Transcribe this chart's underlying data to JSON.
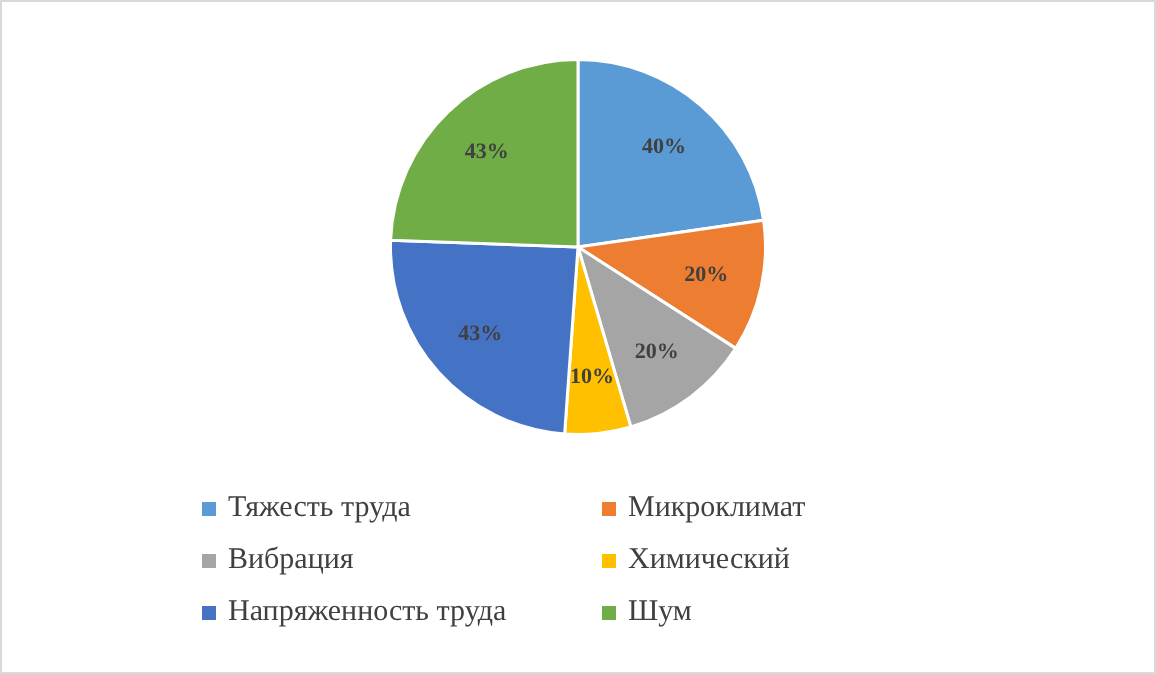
{
  "chart_data": {
    "type": "pie",
    "categories": [
      "Тяжесть труда",
      "Микроклимат",
      "Вибрация",
      "Химический",
      "Напряженность труда",
      "Шум"
    ],
    "values": [
      40,
      20,
      20,
      10,
      43,
      43
    ],
    "value_labels": [
      "40%",
      "20%",
      "20%",
      "10%",
      "43%",
      "43%"
    ],
    "colors": [
      "#5b9bd5",
      "#ed7d31",
      "#a5a5a5",
      "#ffc000",
      "#4472c4",
      "#70ad47"
    ],
    "legend": "bottom"
  }
}
